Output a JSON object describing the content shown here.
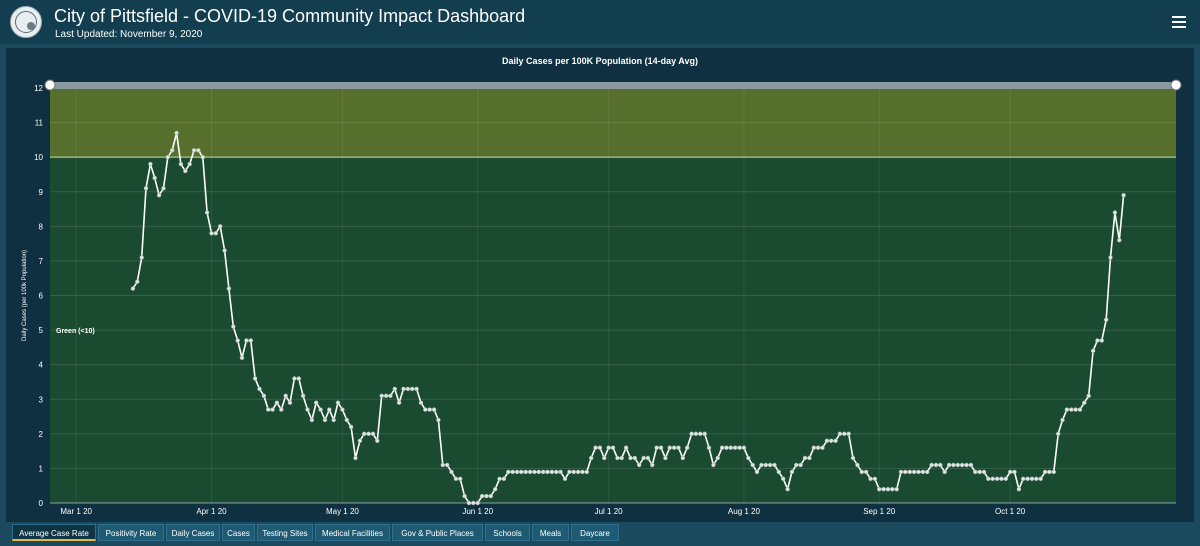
{
  "header": {
    "title": "City of Pittsfield - COVID-19 Community Impact Dashboard",
    "updated": "Last Updated: November 9, 2020",
    "menu_icon": "hamburger-menu-icon",
    "logo_icon": "city-seal-icon"
  },
  "colors": {
    "header_bg": "#123e4f",
    "page_bg": "#1b4a5e",
    "panel_bg": "#0e3040",
    "green_band": "#1a4a2f",
    "yellow_band": "#566f2c",
    "line": "#ffffff",
    "active_tab_accent": "#e6b84a"
  },
  "tabs": [
    {
      "label": "Average Case Rate",
      "active": true
    },
    {
      "label": "Positivity Rate",
      "active": false
    },
    {
      "label": "Daily Cases",
      "active": false
    },
    {
      "label": "Cases",
      "active": false
    },
    {
      "label": "Testing Sites",
      "active": false
    },
    {
      "label": "Medical Facilities",
      "active": false
    },
    {
      "label": "Gov & Public Places",
      "active": false
    },
    {
      "label": "Schools",
      "active": false
    },
    {
      "label": "Meals",
      "active": false
    },
    {
      "label": "Daycare",
      "active": false
    }
  ],
  "chart_data": {
    "type": "line",
    "title": "Daily Cases per 100K Population (14-day Avg)",
    "ylabel": "Daily Cases (per 100k Population)",
    "xlabel": "",
    "ylim": [
      0,
      12
    ],
    "yticks": [
      "0",
      "1",
      "2",
      "3",
      "4",
      "5",
      "6",
      "7",
      "8",
      "9",
      "10",
      "11",
      "12"
    ],
    "xticks": [
      {
        "label": "Mar 1 20",
        "date": "2020-03-01"
      },
      {
        "label": "Apr 1 20",
        "date": "2020-04-01"
      },
      {
        "label": "May 1 20",
        "date": "2020-05-01"
      },
      {
        "label": "Jun 1 20",
        "date": "2020-06-01"
      },
      {
        "label": "Jul 1 20",
        "date": "2020-07-01"
      },
      {
        "label": "Aug 1 20",
        "date": "2020-08-01"
      },
      {
        "label": "Sep 1 20",
        "date": "2020-09-01"
      },
      {
        "label": "Oct 1 20",
        "date": "2020-10-01"
      }
    ],
    "xrange": [
      "2020-02-24",
      "2020-11-08"
    ],
    "bands": [
      {
        "from": 0,
        "to": 10,
        "label": "Green (<10)"
      },
      {
        "from": 10,
        "to": 12,
        "label": ""
      }
    ],
    "grid": true,
    "series": [
      {
        "name": "",
        "points": [
          [
            "2020-03-14",
            6.2
          ],
          [
            "2020-03-15",
            6.4
          ],
          [
            "2020-03-16",
            7.1
          ],
          [
            "2020-03-17",
            9.1
          ],
          [
            "2020-03-18",
            9.8
          ],
          [
            "2020-03-19",
            9.4
          ],
          [
            "2020-03-20",
            8.9
          ],
          [
            "2020-03-21",
            9.1
          ],
          [
            "2020-03-22",
            10.0
          ],
          [
            "2020-03-23",
            10.2
          ],
          [
            "2020-03-24",
            10.7
          ],
          [
            "2020-03-25",
            9.8
          ],
          [
            "2020-03-26",
            9.6
          ],
          [
            "2020-03-27",
            9.8
          ],
          [
            "2020-03-28",
            10.2
          ],
          [
            "2020-03-29",
            10.2
          ],
          [
            "2020-03-30",
            10.0
          ],
          [
            "2020-03-31",
            8.4
          ],
          [
            "2020-04-01",
            7.8
          ],
          [
            "2020-04-02",
            7.8
          ],
          [
            "2020-04-03",
            8.0
          ],
          [
            "2020-04-04",
            7.3
          ],
          [
            "2020-04-05",
            6.2
          ],
          [
            "2020-04-06",
            5.1
          ],
          [
            "2020-04-07",
            4.7
          ],
          [
            "2020-04-08",
            4.2
          ],
          [
            "2020-04-09",
            4.7
          ],
          [
            "2020-04-10",
            4.7
          ],
          [
            "2020-04-11",
            3.6
          ],
          [
            "2020-04-12",
            3.3
          ],
          [
            "2020-04-13",
            3.1
          ],
          [
            "2020-04-14",
            2.7
          ],
          [
            "2020-04-15",
            2.7
          ],
          [
            "2020-04-16",
            2.9
          ],
          [
            "2020-04-17",
            2.7
          ],
          [
            "2020-04-18",
            3.1
          ],
          [
            "2020-04-19",
            2.9
          ],
          [
            "2020-04-20",
            3.6
          ],
          [
            "2020-04-21",
            3.6
          ],
          [
            "2020-04-22",
            3.1
          ],
          [
            "2020-04-23",
            2.7
          ],
          [
            "2020-04-24",
            2.4
          ],
          [
            "2020-04-25",
            2.9
          ],
          [
            "2020-04-26",
            2.7
          ],
          [
            "2020-04-27",
            2.4
          ],
          [
            "2020-04-28",
            2.7
          ],
          [
            "2020-04-29",
            2.4
          ],
          [
            "2020-04-30",
            2.9
          ],
          [
            "2020-05-01",
            2.7
          ],
          [
            "2020-05-02",
            2.4
          ],
          [
            "2020-05-03",
            2.2
          ],
          [
            "2020-05-04",
            1.3
          ],
          [
            "2020-05-05",
            1.8
          ],
          [
            "2020-05-06",
            2.0
          ],
          [
            "2020-05-07",
            2.0
          ],
          [
            "2020-05-08",
            2.0
          ],
          [
            "2020-05-09",
            1.8
          ],
          [
            "2020-05-10",
            3.1
          ],
          [
            "2020-05-11",
            3.1
          ],
          [
            "2020-05-12",
            3.1
          ],
          [
            "2020-05-13",
            3.3
          ],
          [
            "2020-05-14",
            2.9
          ],
          [
            "2020-05-15",
            3.3
          ],
          [
            "2020-05-16",
            3.3
          ],
          [
            "2020-05-17",
            3.3
          ],
          [
            "2020-05-18",
            3.3
          ],
          [
            "2020-05-19",
            2.9
          ],
          [
            "2020-05-20",
            2.7
          ],
          [
            "2020-05-21",
            2.7
          ],
          [
            "2020-05-22",
            2.7
          ],
          [
            "2020-05-23",
            2.4
          ],
          [
            "2020-05-24",
            1.1
          ],
          [
            "2020-05-25",
            1.1
          ],
          [
            "2020-05-26",
            0.9
          ],
          [
            "2020-05-27",
            0.7
          ],
          [
            "2020-05-28",
            0.7
          ],
          [
            "2020-05-29",
            0.2
          ],
          [
            "2020-05-30",
            0.0
          ],
          [
            "2020-05-31",
            0.0
          ],
          [
            "2020-06-01",
            0.0
          ],
          [
            "2020-06-02",
            0.2
          ],
          [
            "2020-06-03",
            0.2
          ],
          [
            "2020-06-04",
            0.2
          ],
          [
            "2020-06-05",
            0.4
          ],
          [
            "2020-06-06",
            0.7
          ],
          [
            "2020-06-07",
            0.7
          ],
          [
            "2020-06-08",
            0.9
          ],
          [
            "2020-06-09",
            0.9
          ],
          [
            "2020-06-10",
            0.9
          ],
          [
            "2020-06-11",
            0.9
          ],
          [
            "2020-06-12",
            0.9
          ],
          [
            "2020-06-13",
            0.9
          ],
          [
            "2020-06-14",
            0.9
          ],
          [
            "2020-06-15",
            0.9
          ],
          [
            "2020-06-16",
            0.9
          ],
          [
            "2020-06-17",
            0.9
          ],
          [
            "2020-06-18",
            0.9
          ],
          [
            "2020-06-19",
            0.9
          ],
          [
            "2020-06-20",
            0.9
          ],
          [
            "2020-06-21",
            0.7
          ],
          [
            "2020-06-22",
            0.9
          ],
          [
            "2020-06-23",
            0.9
          ],
          [
            "2020-06-24",
            0.9
          ],
          [
            "2020-06-25",
            0.9
          ],
          [
            "2020-06-26",
            0.9
          ],
          [
            "2020-06-27",
            1.3
          ],
          [
            "2020-06-28",
            1.6
          ],
          [
            "2020-06-29",
            1.6
          ],
          [
            "2020-06-30",
            1.3
          ],
          [
            "2020-07-01",
            1.6
          ],
          [
            "2020-07-02",
            1.6
          ],
          [
            "2020-07-03",
            1.3
          ],
          [
            "2020-07-04",
            1.3
          ],
          [
            "2020-07-05",
            1.6
          ],
          [
            "2020-07-06",
            1.3
          ],
          [
            "2020-07-07",
            1.3
          ],
          [
            "2020-07-08",
            1.1
          ],
          [
            "2020-07-09",
            1.3
          ],
          [
            "2020-07-10",
            1.3
          ],
          [
            "2020-07-11",
            1.1
          ],
          [
            "2020-07-12",
            1.6
          ],
          [
            "2020-07-13",
            1.6
          ],
          [
            "2020-07-14",
            1.3
          ],
          [
            "2020-07-15",
            1.6
          ],
          [
            "2020-07-16",
            1.6
          ],
          [
            "2020-07-17",
            1.6
          ],
          [
            "2020-07-18",
            1.3
          ],
          [
            "2020-07-19",
            1.6
          ],
          [
            "2020-07-20",
            2.0
          ],
          [
            "2020-07-21",
            2.0
          ],
          [
            "2020-07-22",
            2.0
          ],
          [
            "2020-07-23",
            2.0
          ],
          [
            "2020-07-24",
            1.6
          ],
          [
            "2020-07-25",
            1.1
          ],
          [
            "2020-07-26",
            1.3
          ],
          [
            "2020-07-27",
            1.6
          ],
          [
            "2020-07-28",
            1.6
          ],
          [
            "2020-07-29",
            1.6
          ],
          [
            "2020-07-30",
            1.6
          ],
          [
            "2020-07-31",
            1.6
          ],
          [
            "2020-08-01",
            1.6
          ],
          [
            "2020-08-02",
            1.3
          ],
          [
            "2020-08-03",
            1.1
          ],
          [
            "2020-08-04",
            0.9
          ],
          [
            "2020-08-05",
            1.1
          ],
          [
            "2020-08-06",
            1.1
          ],
          [
            "2020-08-07",
            1.1
          ],
          [
            "2020-08-08",
            1.1
          ],
          [
            "2020-08-09",
            0.9
          ],
          [
            "2020-08-10",
            0.7
          ],
          [
            "2020-08-11",
            0.4
          ],
          [
            "2020-08-12",
            0.9
          ],
          [
            "2020-08-13",
            1.1
          ],
          [
            "2020-08-14",
            1.1
          ],
          [
            "2020-08-15",
            1.3
          ],
          [
            "2020-08-16",
            1.3
          ],
          [
            "2020-08-17",
            1.6
          ],
          [
            "2020-08-18",
            1.6
          ],
          [
            "2020-08-19",
            1.6
          ],
          [
            "2020-08-20",
            1.8
          ],
          [
            "2020-08-21",
            1.8
          ],
          [
            "2020-08-22",
            1.8
          ],
          [
            "2020-08-23",
            2.0
          ],
          [
            "2020-08-24",
            2.0
          ],
          [
            "2020-08-25",
            2.0
          ],
          [
            "2020-08-26",
            1.3
          ],
          [
            "2020-08-27",
            1.1
          ],
          [
            "2020-08-28",
            0.9
          ],
          [
            "2020-08-29",
            0.9
          ],
          [
            "2020-08-30",
            0.7
          ],
          [
            "2020-08-31",
            0.7
          ],
          [
            "2020-09-01",
            0.4
          ],
          [
            "2020-09-02",
            0.4
          ],
          [
            "2020-09-03",
            0.4
          ],
          [
            "2020-09-04",
            0.4
          ],
          [
            "2020-09-05",
            0.4
          ],
          [
            "2020-09-06",
            0.9
          ],
          [
            "2020-09-07",
            0.9
          ],
          [
            "2020-09-08",
            0.9
          ],
          [
            "2020-09-09",
            0.9
          ],
          [
            "2020-09-10",
            0.9
          ],
          [
            "2020-09-11",
            0.9
          ],
          [
            "2020-09-12",
            0.9
          ],
          [
            "2020-09-13",
            1.1
          ],
          [
            "2020-09-14",
            1.1
          ],
          [
            "2020-09-15",
            1.1
          ],
          [
            "2020-09-16",
            0.9
          ],
          [
            "2020-09-17",
            1.1
          ],
          [
            "2020-09-18",
            1.1
          ],
          [
            "2020-09-19",
            1.1
          ],
          [
            "2020-09-20",
            1.1
          ],
          [
            "2020-09-21",
            1.1
          ],
          [
            "2020-09-22",
            1.1
          ],
          [
            "2020-09-23",
            0.9
          ],
          [
            "2020-09-24",
            0.9
          ],
          [
            "2020-09-25",
            0.9
          ],
          [
            "2020-09-26",
            0.7
          ],
          [
            "2020-09-27",
            0.7
          ],
          [
            "2020-09-28",
            0.7
          ],
          [
            "2020-09-29",
            0.7
          ],
          [
            "2020-09-30",
            0.7
          ],
          [
            "2020-10-01",
            0.9
          ],
          [
            "2020-10-02",
            0.9
          ],
          [
            "2020-10-03",
            0.4
          ],
          [
            "2020-10-04",
            0.7
          ],
          [
            "2020-10-05",
            0.7
          ],
          [
            "2020-10-06",
            0.7
          ],
          [
            "2020-10-07",
            0.7
          ],
          [
            "2020-10-08",
            0.7
          ],
          [
            "2020-10-09",
            0.9
          ],
          [
            "2020-10-10",
            0.9
          ],
          [
            "2020-10-11",
            0.9
          ],
          [
            "2020-10-12",
            2.0
          ],
          [
            "2020-10-13",
            2.4
          ],
          [
            "2020-10-14",
            2.7
          ],
          [
            "2020-10-15",
            2.7
          ],
          [
            "2020-10-16",
            2.7
          ],
          [
            "2020-10-17",
            2.7
          ],
          [
            "2020-10-18",
            2.9
          ],
          [
            "2020-10-19",
            3.1
          ],
          [
            "2020-10-20",
            4.4
          ],
          [
            "2020-10-21",
            4.7
          ],
          [
            "2020-10-22",
            4.7
          ],
          [
            "2020-10-23",
            5.3
          ],
          [
            "2020-10-24",
            7.1
          ],
          [
            "2020-10-25",
            8.4
          ],
          [
            "2020-10-26",
            7.6
          ],
          [
            "2020-10-27",
            8.9
          ]
        ]
      }
    ]
  }
}
